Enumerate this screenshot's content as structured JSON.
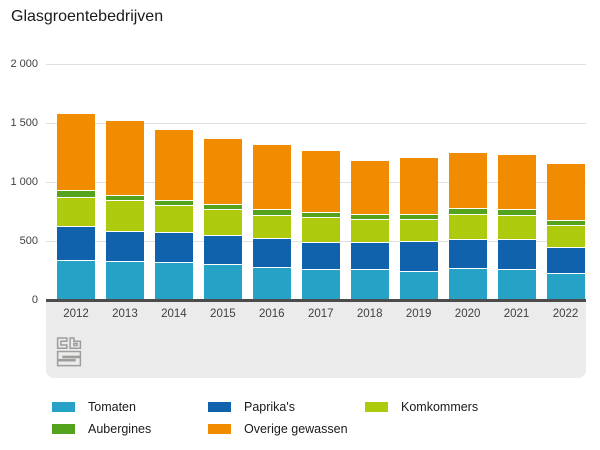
{
  "title": "Glasgroentebedrijven",
  "colors": {
    "tomaten": "#25a2c6",
    "paprikas": "#0f62ab",
    "komkommers": "#aeca0d",
    "aubergines": "#53a31d",
    "overige": "#f18c00",
    "grid": "#e0e0e0",
    "axis_line": "#4c4c4c",
    "footer_bg": "#ebebeb",
    "logo_gray": "#9d9d9c"
  },
  "chart_data": {
    "type": "bar",
    "stacked": true,
    "title": "Glasgroentebedrijven",
    "categories": [
      "2012",
      "2013",
      "2014",
      "2015",
      "2016",
      "2017",
      "2018",
      "2019",
      "2020",
      "2021",
      "2022"
    ],
    "series": [
      {
        "name": "Tomaten",
        "color_key": "tomaten",
        "values": [
          330,
          320,
          310,
          295,
          270,
          255,
          250,
          240,
          260,
          255,
          220
        ]
      },
      {
        "name": "Paprika's",
        "color_key": "paprikas",
        "values": [
          285,
          260,
          255,
          250,
          245,
          230,
          235,
          250,
          250,
          250,
          220
        ]
      },
      {
        "name": "Komkommers",
        "color_key": "komkommers",
        "values": [
          250,
          255,
          230,
          215,
          200,
          210,
          190,
          185,
          210,
          210,
          185
        ]
      },
      {
        "name": "Aubergines",
        "color_key": "aubergines",
        "values": [
          55,
          50,
          45,
          45,
          50,
          45,
          45,
          45,
          50,
          50,
          45
        ]
      },
      {
        "name": "Overige gewassen",
        "color_key": "overige",
        "values": [
          660,
          630,
          600,
          560,
          550,
          520,
          455,
          485,
          475,
          465,
          480
        ]
      }
    ],
    "totals": [
      1580,
      1515,
      1440,
      1365,
      1315,
      1260,
      1175,
      1205,
      1245,
      1230,
      1150
    ],
    "stack_order": "bottom-to-top as listed",
    "xlabel": "",
    "ylabel": "",
    "ylim": [
      0,
      2000
    ],
    "yticks": [
      {
        "label": "0",
        "value": 0
      },
      {
        "label": "500",
        "value": 500
      },
      {
        "label": "1 000",
        "value": 1000
      },
      {
        "label": "1 500",
        "value": 1500
      },
      {
        "label": "2 000",
        "value": 2000
      }
    ],
    "grid": true,
    "legend_position": "bottom"
  },
  "legend": {
    "items": [
      {
        "label": "Tomaten",
        "color_key": "tomaten"
      },
      {
        "label": "Paprika's",
        "color_key": "paprikas"
      },
      {
        "label": "Komkommers",
        "color_key": "komkommers"
      },
      {
        "label": "Aubergines",
        "color_key": "aubergines"
      },
      {
        "label": "Overige gewassen",
        "color_key": "overige"
      }
    ]
  },
  "branding": {
    "logo_icon": "cbs-logo"
  }
}
